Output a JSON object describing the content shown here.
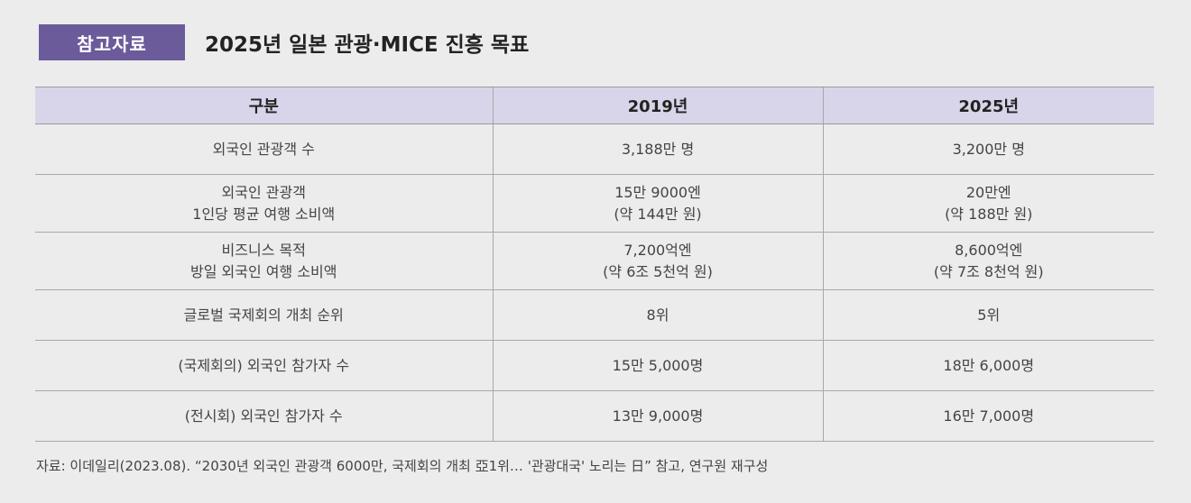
{
  "header": {
    "badge": "참고자료",
    "title": "2025년 일본 관광·MICE 진흥 목표"
  },
  "table": {
    "columns": [
      "구분",
      "2019년",
      "2025년"
    ],
    "rows": [
      {
        "label": [
          "외국인 관광객 수"
        ],
        "y2019": [
          "3,188만 명"
        ],
        "y2025": [
          "3,200만 명"
        ]
      },
      {
        "label": [
          "외국인 관광객",
          "1인당 평균 여행 소비액"
        ],
        "y2019": [
          "15만 9000엔",
          "(약 144만 원)"
        ],
        "y2025": [
          "20만엔",
          "(약 188만 원)"
        ]
      },
      {
        "label": [
          "비즈니스 목적",
          "방일 외국인 여행 소비액"
        ],
        "y2019": [
          "7,200억엔",
          "(약 6조 5천억 원)"
        ],
        "y2025": [
          "8,600억엔",
          "(약 7조 8천억 원)"
        ]
      },
      {
        "label": [
          "글로벌 국제회의 개최 순위"
        ],
        "y2019": [
          "8위"
        ],
        "y2025": [
          "5위"
        ]
      },
      {
        "label": [
          "(국제회의) 외국인 참가자 수"
        ],
        "y2019": [
          "15만 5,000명"
        ],
        "y2025": [
          "18만 6,000명"
        ]
      },
      {
        "label": [
          "(전시회) 외국인 참가자 수"
        ],
        "y2019": [
          "13만 9,000명"
        ],
        "y2025": [
          "16만 7,000명"
        ]
      }
    ]
  },
  "source": "자료: 이데일리(2023.08). “2030년 외국인 관광객 6000만, 국제회의 개최 亞1위… '관광대국' 노리는 日” 참고, 연구원 재구성",
  "colors": {
    "badge_bg": "#6b5b9a",
    "header_row_bg": "#d8d4e9",
    "page_bg": "#ececed"
  }
}
